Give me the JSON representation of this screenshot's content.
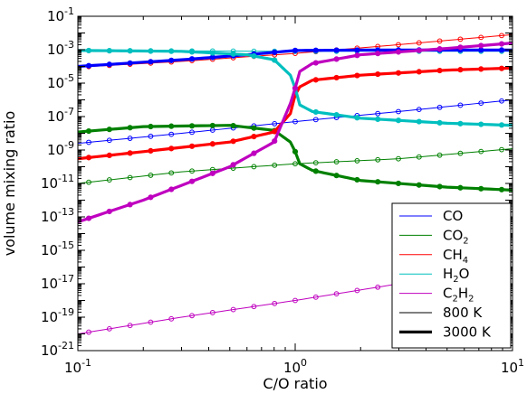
{
  "chart_data": {
    "type": "line",
    "xlabel": "C/O ratio",
    "ylabel": "volume mixing ratio",
    "xscale": "log",
    "yscale": "log",
    "xlim": [
      0.1,
      10
    ],
    "ylim": [
      1e-21,
      0.1
    ],
    "x_ticks": [
      {
        "value": 0.1,
        "base": "10",
        "exp": "-1"
      },
      {
        "value": 1,
        "base": "10",
        "exp": "0"
      },
      {
        "value": 10,
        "base": "10",
        "exp": "1"
      }
    ],
    "y_ticks": [
      {
        "value": 1e-21,
        "base": "10",
        "exp": "-21"
      },
      {
        "value": 1e-19,
        "base": "10",
        "exp": "-19"
      },
      {
        "value": 1e-17,
        "base": "10",
        "exp": "-17"
      },
      {
        "value": 1e-15,
        "base": "10",
        "exp": "-15"
      },
      {
        "value": 1e-13,
        "base": "10",
        "exp": "-13"
      },
      {
        "value": 1e-11,
        "base": "10",
        "exp": "-11"
      },
      {
        "value": 1e-09,
        "base": "10",
        "exp": "-9"
      },
      {
        "value": 1e-07,
        "base": "10",
        "exp": "-7"
      },
      {
        "value": 1e-05,
        "base": "10",
        "exp": "-5"
      },
      {
        "value": 0.001,
        "base": "10",
        "exp": "-3"
      },
      {
        "value": 0.1,
        "base": "10",
        "exp": "-1"
      }
    ],
    "legend": {
      "position": "lower right",
      "entries": [
        {
          "main": "CO",
          "color": "#0000ff",
          "weight": "thin"
        },
        {
          "main": "CO",
          "sub": "2",
          "color": "#008000",
          "weight": "thin"
        },
        {
          "main": "CH",
          "sub": "4",
          "color": "#ff0000",
          "weight": "thin"
        },
        {
          "main": "H",
          "sub": "2",
          "tail": "O",
          "color": "#00bfbf",
          "weight": "thin"
        },
        {
          "main": "C",
          "sub": "2",
          "tail": "H",
          "sub2": "2",
          "color": "#bf00bf",
          "weight": "thin"
        },
        {
          "main": "800 K",
          "color": "#000000",
          "weight": "thin"
        },
        {
          "main": "3000 K",
          "color": "#000000",
          "weight": "thick"
        }
      ]
    },
    "series": [
      {
        "species": "CO",
        "temperature": "800 K",
        "color": "#0000ff",
        "style": "thin line with open circles",
        "x": [
          0.1,
          0.3,
          1,
          3,
          10
        ],
        "y": [
          2.5e-09,
          1e-08,
          5e-08,
          2e-07,
          1e-06
        ]
      },
      {
        "species": "CO2",
        "temperature": "800 K",
        "color": "#008000",
        "style": "thin line with open circles",
        "x": [
          0.1,
          0.3,
          1,
          3,
          10
        ],
        "y": [
          1e-11,
          5e-11,
          1.5e-10,
          3e-10,
          1.2e-09
        ]
      },
      {
        "species": "CH4",
        "temperature": "800 K",
        "color": "#ff0000",
        "style": "thin line with open circles",
        "x": [
          0.1,
          0.3,
          1,
          3,
          10
        ],
        "y": [
          9e-05,
          0.0002,
          0.0006,
          0.002,
          0.008
        ]
      },
      {
        "species": "H2O",
        "temperature": "800 K",
        "color": "#00bfbf",
        "style": "thin line with open circles",
        "x": [
          0.1,
          0.3,
          1,
          3,
          10
        ],
        "y": [
          0.0009,
          0.00085,
          0.0008,
          0.0008,
          0.0008
        ]
      },
      {
        "species": "C2H2",
        "temperature": "800 K",
        "color": "#bf00bf",
        "style": "thin line with open circles",
        "x": [
          0.1,
          0.3,
          1,
          3,
          10
        ],
        "y": [
          1e-20,
          1e-19,
          1e-18,
          1e-17,
          1e-16
        ]
      },
      {
        "species": "CO",
        "temperature": "3000 K",
        "color": "#0000ff",
        "style": "thick line with filled circles",
        "x": [
          0.1,
          0.3,
          0.6,
          1,
          2,
          5,
          10
        ],
        "y": [
          0.0001,
          0.00025,
          0.0005,
          0.0009,
          0.00095,
          0.00095,
          0.00095
        ]
      },
      {
        "species": "CO2",
        "temperature": "3000 K",
        "color": "#008000",
        "style": "thick line with filled circles",
        "x": [
          0.1,
          0.2,
          0.5,
          0.8,
          0.95,
          1,
          1.05,
          1.2,
          2,
          5,
          10
        ],
        "y": [
          1.2e-08,
          2.5e-08,
          3e-08,
          1.5e-08,
          3e-09,
          8e-10,
          1.5e-10,
          6e-11,
          1.5e-11,
          6e-12,
          4e-12
        ]
      },
      {
        "species": "CH4",
        "temperature": "3000 K",
        "color": "#ff0000",
        "style": "thick line with filled circles",
        "x": [
          0.1,
          0.2,
          0.5,
          0.8,
          0.95,
          1,
          1.05,
          1.2,
          2,
          5,
          10
        ],
        "y": [
          3e-10,
          8e-10,
          3e-09,
          1.2e-08,
          1.5e-07,
          2e-06,
          6e-06,
          1.5e-05,
          3e-05,
          6e-05,
          8e-05
        ]
      },
      {
        "species": "H2O",
        "temperature": "3000 K",
        "color": "#00bfbf",
        "style": "thick line with filled circles",
        "x": [
          0.1,
          0.3,
          0.6,
          0.8,
          0.95,
          1,
          1.05,
          1.2,
          2,
          5,
          10
        ],
        "y": [
          0.0009,
          0.0008,
          0.0005,
          0.00025,
          3e-05,
          5e-06,
          5e-07,
          2e-07,
          8e-08,
          4e-08,
          3e-08
        ]
      },
      {
        "species": "C2H2",
        "temperature": "3000 K",
        "color": "#bf00bf",
        "style": "thick line with filled circles",
        "x": [
          0.1,
          0.2,
          0.5,
          0.8,
          0.95,
          1,
          1.05,
          1.2,
          2,
          5,
          10
        ],
        "y": [
          5e-14,
          1e-12,
          1e-10,
          3e-09,
          6e-07,
          5e-06,
          5e-05,
          0.00015,
          0.0005,
          0.0012,
          0.0025
        ]
      }
    ]
  }
}
